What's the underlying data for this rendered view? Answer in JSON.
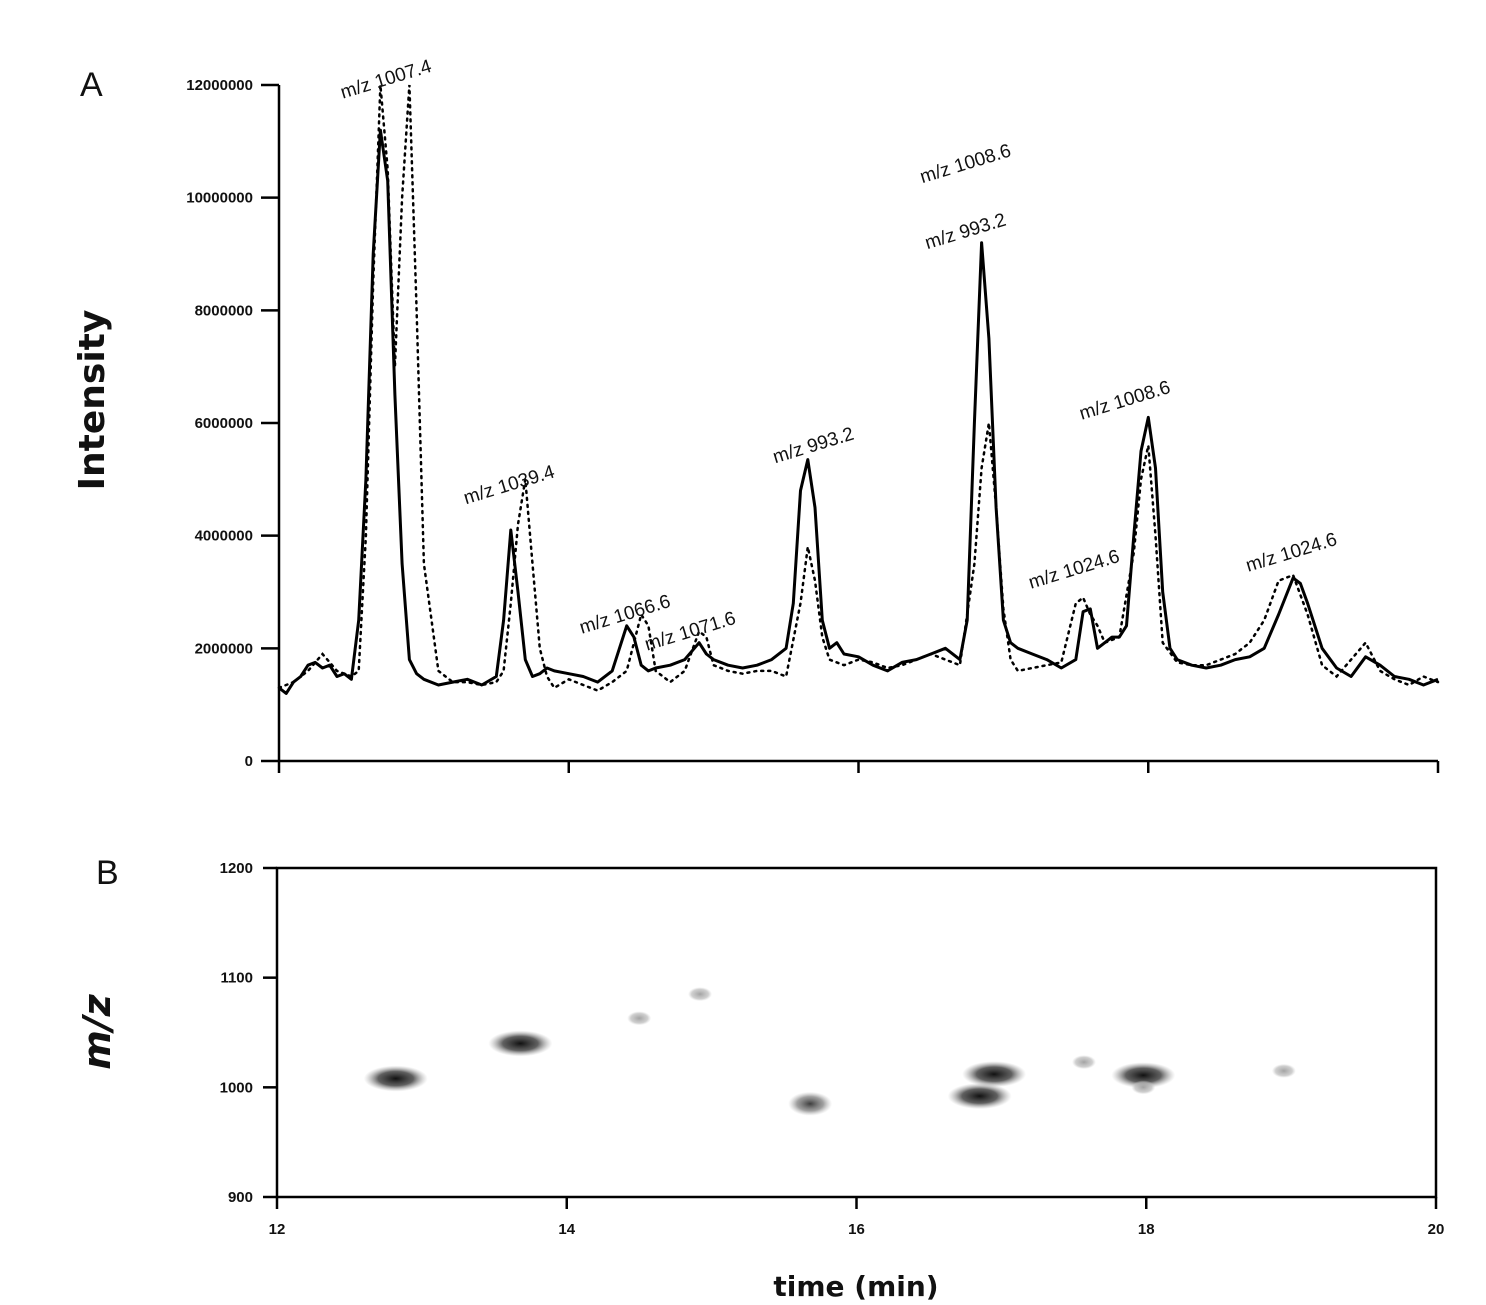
{
  "chart_data": [
    {
      "panel": "A",
      "type": "line",
      "ylabel": "Intensity",
      "xlim": [
        12,
        20
      ],
      "ylim": [
        0,
        12000000
      ],
      "xticks": [
        12,
        14,
        16,
        18,
        20
      ],
      "yticks": [
        "0",
        "2000000",
        "4000000",
        "6000000",
        "8000000",
        "10000000",
        "12000000"
      ],
      "series": [
        {
          "style": "solid",
          "x": [
            12.0,
            12.05,
            12.1,
            12.15,
            12.2,
            12.25,
            12.3,
            12.35,
            12.4,
            12.45,
            12.5,
            12.55,
            12.6,
            12.65,
            12.7,
            12.75,
            12.8,
            12.85,
            12.9,
            12.95,
            13.0,
            13.1,
            13.2,
            13.3,
            13.4,
            13.5,
            13.55,
            13.6,
            13.65,
            13.7,
            13.75,
            13.8,
            13.85,
            13.9,
            14.0,
            14.1,
            14.2,
            14.3,
            14.4,
            14.45,
            14.5,
            14.55,
            14.6,
            14.7,
            14.8,
            14.9,
            14.95,
            15.0,
            15.1,
            15.2,
            15.3,
            15.4,
            15.5,
            15.55,
            15.6,
            15.65,
            15.7,
            15.75,
            15.8,
            15.85,
            15.9,
            16.0,
            16.1,
            16.2,
            16.3,
            16.4,
            16.5,
            16.6,
            16.7,
            16.75,
            16.8,
            16.85,
            16.9,
            16.95,
            17.0,
            17.05,
            17.1,
            17.2,
            17.3,
            17.4,
            17.5,
            17.55,
            17.6,
            17.65,
            17.7,
            17.75,
            17.8,
            17.85,
            17.9,
            17.95,
            18.0,
            18.05,
            18.1,
            18.15,
            18.2,
            18.3,
            18.4,
            18.5,
            18.6,
            18.7,
            18.8,
            18.9,
            19.0,
            19.05,
            19.1,
            19.2,
            19.3,
            19.4,
            19.5,
            19.6,
            19.7,
            19.8,
            19.9,
            20.0
          ],
          "y": [
            1300000,
            1200000,
            1400000,
            1500000,
            1700000,
            1750000,
            1650000,
            1700000,
            1500000,
            1550000,
            1450000,
            2500000,
            5000000,
            9000000,
            11200000,
            10300000,
            6500000,
            3500000,
            1800000,
            1550000,
            1450000,
            1350000,
            1400000,
            1450000,
            1350000,
            1500000,
            2500000,
            4100000,
            3000000,
            1800000,
            1500000,
            1550000,
            1650000,
            1600000,
            1550000,
            1500000,
            1400000,
            1600000,
            2400000,
            2200000,
            1700000,
            1600000,
            1650000,
            1700000,
            1800000,
            2100000,
            1900000,
            1800000,
            1700000,
            1650000,
            1700000,
            1800000,
            2000000,
            2800000,
            4800000,
            5350000,
            4500000,
            2500000,
            2000000,
            2100000,
            1900000,
            1850000,
            1700000,
            1600000,
            1750000,
            1800000,
            1900000,
            2000000,
            1800000,
            2500000,
            6000000,
            9200000,
            7500000,
            4500000,
            2500000,
            2100000,
            2000000,
            1900000,
            1800000,
            1650000,
            1800000,
            2650000,
            2700000,
            2000000,
            2100000,
            2200000,
            2200000,
            2400000,
            4000000,
            5500000,
            6100000,
            5200000,
            3000000,
            2000000,
            1800000,
            1700000,
            1650000,
            1700000,
            1800000,
            1850000,
            2000000,
            2600000,
            3250000,
            3150000,
            2800000,
            2000000,
            1650000,
            1500000,
            1850000,
            1700000,
            1500000,
            1450000,
            1350000,
            1450000
          ]
        },
        {
          "style": "dotted",
          "x": [
            12.0,
            12.1,
            12.2,
            12.3,
            12.4,
            12.5,
            12.55,
            12.6,
            12.65,
            12.7,
            12.75,
            12.8,
            12.85,
            12.9,
            12.95,
            13.0,
            13.1,
            13.2,
            13.3,
            13.4,
            13.5,
            13.55,
            13.6,
            13.65,
            13.7,
            13.75,
            13.8,
            13.85,
            13.9,
            14.0,
            14.1,
            14.2,
            14.3,
            14.4,
            14.5,
            14.55,
            14.6,
            14.7,
            14.8,
            14.9,
            14.95,
            15.0,
            15.1,
            15.2,
            15.3,
            15.4,
            15.5,
            15.6,
            15.65,
            15.7,
            15.75,
            15.8,
            15.9,
            16.0,
            16.1,
            16.2,
            16.3,
            16.4,
            16.5,
            16.6,
            16.7,
            16.8,
            16.85,
            16.9,
            16.95,
            17.0,
            17.05,
            17.1,
            17.2,
            17.3,
            17.4,
            17.5,
            17.55,
            17.6,
            17.65,
            17.7,
            17.8,
            17.9,
            17.95,
            18.0,
            18.05,
            18.1,
            18.2,
            18.3,
            18.4,
            18.5,
            18.6,
            18.7,
            18.8,
            18.9,
            19.0,
            19.1,
            19.2,
            19.3,
            19.4,
            19.5,
            19.6,
            19.7,
            19.8,
            19.9,
            20.0
          ],
          "y": [
            1300000,
            1400000,
            1600000,
            1900000,
            1600000,
            1500000,
            1600000,
            4000000,
            8500000,
            12000000,
            10500000,
            7000000,
            10000000,
            12000000,
            8000000,
            3500000,
            1600000,
            1400000,
            1400000,
            1350000,
            1400000,
            1600000,
            2800000,
            4200000,
            5000000,
            3500000,
            2000000,
            1500000,
            1300000,
            1450000,
            1350000,
            1250000,
            1400000,
            1600000,
            2600000,
            2400000,
            1600000,
            1400000,
            1600000,
            2300000,
            2200000,
            1700000,
            1600000,
            1550000,
            1600000,
            1600000,
            1500000,
            2800000,
            3800000,
            3200000,
            2200000,
            1800000,
            1700000,
            1800000,
            1750000,
            1650000,
            1700000,
            1800000,
            1900000,
            1800000,
            1700000,
            3500000,
            5200000,
            6000000,
            4500000,
            2700000,
            1800000,
            1600000,
            1650000,
            1700000,
            1750000,
            2800000,
            2900000,
            2600000,
            2400000,
            2100000,
            2200000,
            3700000,
            5000000,
            5600000,
            4000000,
            2100000,
            1750000,
            1700000,
            1700000,
            1800000,
            1900000,
            2100000,
            2500000,
            3200000,
            3300000,
            2600000,
            1700000,
            1500000,
            1800000,
            2100000,
            1600000,
            1450000,
            1350000,
            1500000,
            1400000
          ]
        }
      ],
      "annotations": [
        {
          "text": "m/z 1007.4",
          "x": 12.75,
          "y": 12000000
        },
        {
          "text": "m/z 1039.4",
          "x": 13.6,
          "y": 4800000
        },
        {
          "text": "m/z 1066.6",
          "x": 14.4,
          "y": 2500000
        },
        {
          "text": "m/z 1071.6",
          "x": 14.85,
          "y": 2200000
        },
        {
          "text": "m/z 993.2",
          "x": 15.7,
          "y": 5500000
        },
        {
          "text": "m/z 1008.6",
          "x": 16.75,
          "y": 10500000
        },
        {
          "text": "m/z 993.2",
          "x": 16.75,
          "y": 9300000
        },
        {
          "text": "m/z 1024.6",
          "x": 17.5,
          "y": 3300000
        },
        {
          "text": "m/z 1008.6",
          "x": 17.85,
          "y": 6300000
        },
        {
          "text": "m/z 1024.6",
          "x": 19.0,
          "y": 3600000
        }
      ]
    },
    {
      "panel": "B",
      "type": "heatmap",
      "xlabel": "time (min)",
      "ylabel": "m/z",
      "xlim": [
        12,
        20
      ],
      "ylim": [
        900,
        1200
      ],
      "xticks": [
        12,
        14,
        16,
        18,
        20
      ],
      "yticks": [
        900,
        1000,
        1100,
        1200
      ],
      "spots": [
        {
          "x": 12.82,
          "y": 1008,
          "intensity": "high"
        },
        {
          "x": 13.68,
          "y": 1040,
          "intensity": "high"
        },
        {
          "x": 14.5,
          "y": 1063,
          "intensity": "low"
        },
        {
          "x": 14.92,
          "y": 1085,
          "intensity": "low"
        },
        {
          "x": 15.68,
          "y": 985,
          "intensity": "medium"
        },
        {
          "x": 16.85,
          "y": 992,
          "intensity": "high"
        },
        {
          "x": 16.95,
          "y": 1012,
          "intensity": "high"
        },
        {
          "x": 17.57,
          "y": 1023,
          "intensity": "low"
        },
        {
          "x": 17.98,
          "y": 1011,
          "intensity": "high"
        },
        {
          "x": 17.98,
          "y": 1000,
          "intensity": "low"
        },
        {
          "x": 18.95,
          "y": 1015,
          "intensity": "low"
        }
      ]
    }
  ],
  "panel_a_label": "A",
  "panel_b_label": "B"
}
